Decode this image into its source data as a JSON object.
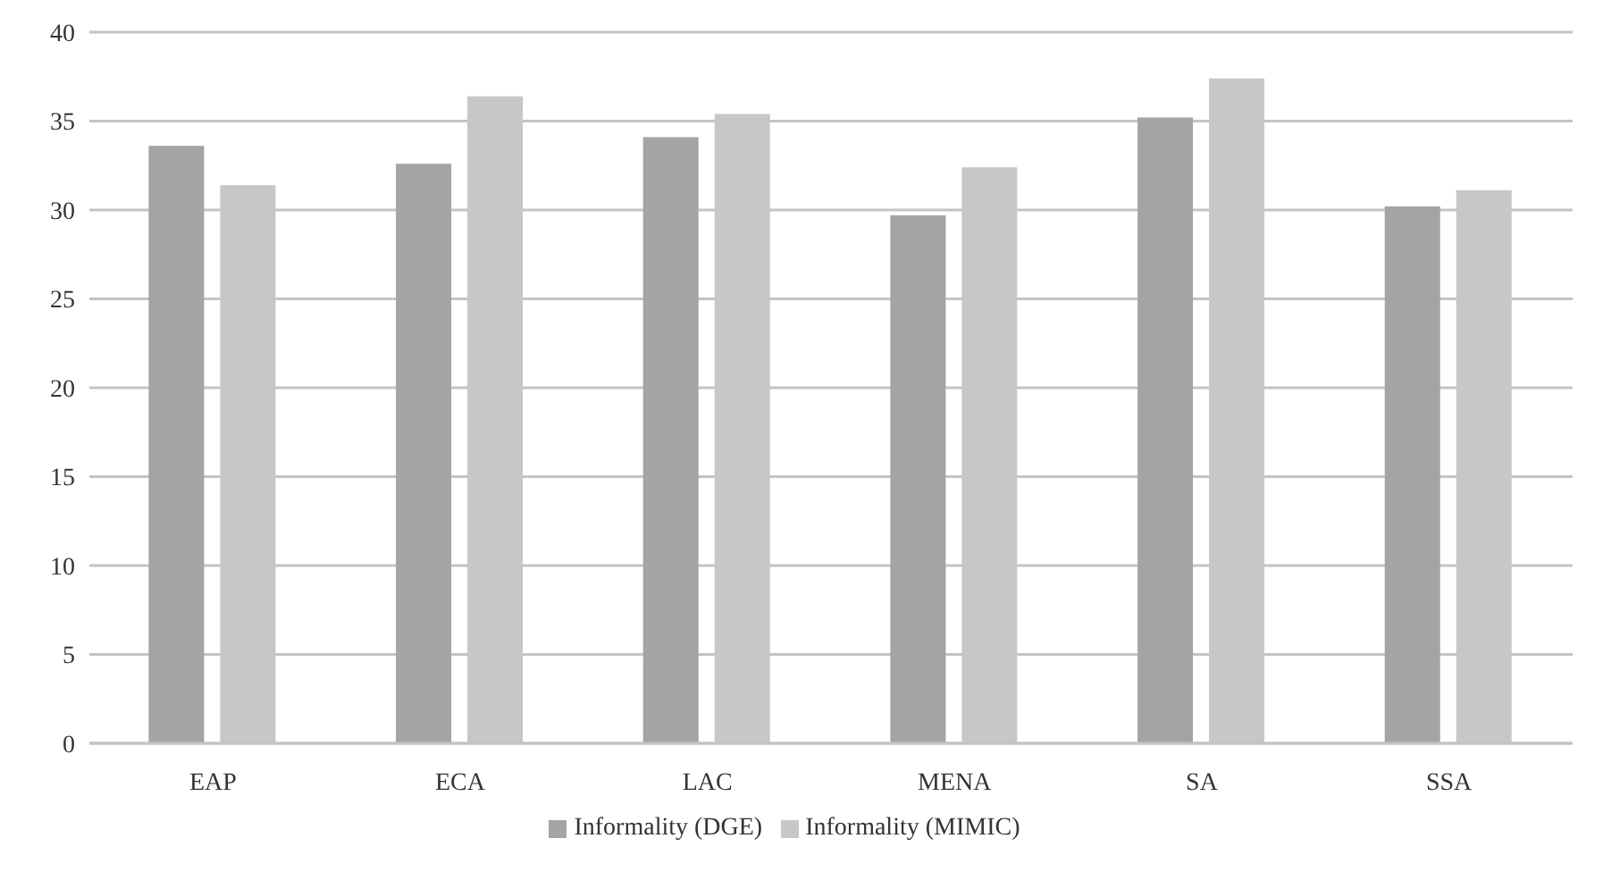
{
  "chart_data": {
    "type": "bar",
    "categories": [
      "EAP",
      "ECA",
      "LAC",
      "MENA",
      "SA",
      "SSA"
    ],
    "series": [
      {
        "name": "Informality (DGE)",
        "color": "#a4a4a7",
        "values": [
          33.6,
          32.6,
          34.1,
          29.7,
          35.2,
          30.2
        ]
      },
      {
        "name": "Informality (MIMIC)",
        "color": "#c7c7c9",
        "values": [
          31.4,
          36.4,
          35.4,
          32.4,
          37.4,
          31.1
        ]
      }
    ],
    "ylim": [
      0,
      40
    ],
    "yticks": [
      0,
      5,
      10,
      15,
      20,
      25,
      30,
      35,
      40
    ],
    "grid": "y",
    "legend": "bottom"
  }
}
